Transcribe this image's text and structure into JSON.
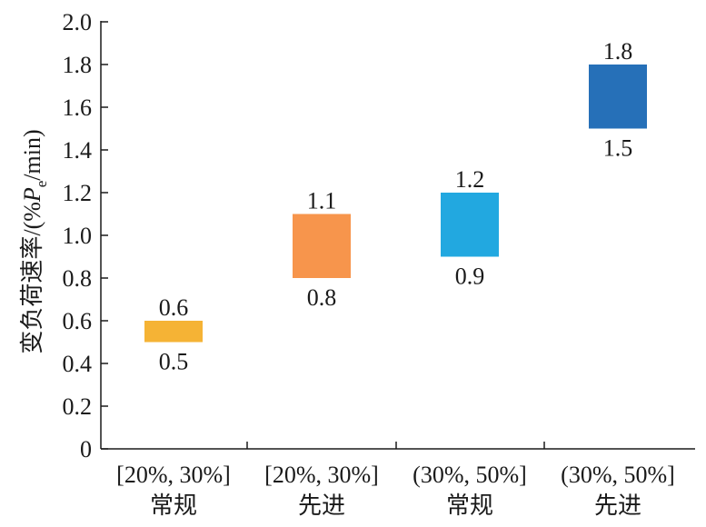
{
  "chart_data": {
    "type": "bar",
    "subtype": "floating-range",
    "ylabel": {
      "main": "变负荷速率/(%",
      "italic": "P",
      "subscript": "e",
      "tail": "/min)"
    },
    "ylim": [
      0,
      2.0
    ],
    "yticks": [
      "0",
      "0.2",
      "0.4",
      "0.6",
      "0.8",
      "1.0",
      "1.2",
      "1.4",
      "1.6",
      "1.8",
      "2.0"
    ],
    "ytick_values": [
      0,
      0.2,
      0.4,
      0.6,
      0.8,
      1.0,
      1.2,
      1.4,
      1.6,
      1.8,
      2.0
    ],
    "grid": false,
    "categories": [
      {
        "line1": "[20%, 30%]",
        "line2": "常规"
      },
      {
        "line1": "[20%, 30%]",
        "line2": "先进"
      },
      {
        "line1": "(30%, 50%]",
        "line2": "常规"
      },
      {
        "line1": "(30%, 50%]",
        "line2": "先进"
      }
    ],
    "ranges": [
      {
        "low": 0.5,
        "high": 0.6,
        "low_label": "0.5",
        "high_label": "0.6",
        "color": "#F5B335"
      },
      {
        "low": 0.8,
        "high": 1.1,
        "low_label": "0.8",
        "high_label": "1.1",
        "color": "#F7954C"
      },
      {
        "low": 0.9,
        "high": 1.2,
        "low_label": "0.9",
        "high_label": "1.2",
        "color": "#22A8E0"
      },
      {
        "low": 1.5,
        "high": 1.8,
        "low_label": "1.5",
        "high_label": "1.8",
        "color": "#2670B8"
      }
    ]
  }
}
